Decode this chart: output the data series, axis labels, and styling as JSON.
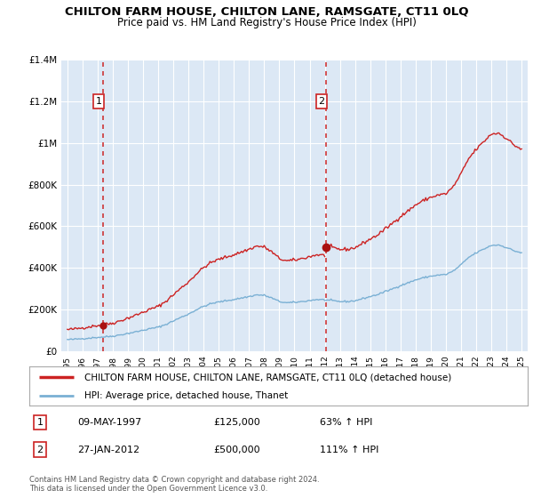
{
  "title": "CHILTON FARM HOUSE, CHILTON LANE, RAMSGATE, CT11 0LQ",
  "subtitle": "Price paid vs. HM Land Registry's House Price Index (HPI)",
  "legend_label_red": "CHILTON FARM HOUSE, CHILTON LANE, RAMSGATE, CT11 0LQ (detached house)",
  "legend_label_blue": "HPI: Average price, detached house, Thanet",
  "footer_line1": "Contains HM Land Registry data © Crown copyright and database right 2024.",
  "footer_line2": "This data is licensed under the Open Government Licence v3.0.",
  "table_rows": [
    {
      "num": "1",
      "date": "09-MAY-1997",
      "price": "£125,000",
      "hpi": "63% ↑ HPI"
    },
    {
      "num": "2",
      "date": "27-JAN-2012",
      "price": "£500,000",
      "hpi": "111% ↑ HPI"
    }
  ],
  "sale1_year": 1997.37,
  "sale1_price": 125000,
  "sale2_year": 2012.08,
  "sale2_price": 500000,
  "ylim": [
    0,
    1400000
  ],
  "xlim_min": 1994.6,
  "xlim_max": 2025.4,
  "yticks": [
    0,
    200000,
    400000,
    600000,
    800000,
    1000000,
    1200000,
    1400000
  ],
  "ytick_labels": [
    "£0",
    "£200K",
    "£400K",
    "£600K",
    "£800K",
    "£1M",
    "£1.2M",
    "£1.4M"
  ],
  "red_line_color": "#cc2222",
  "blue_line_color": "#7ab0d4",
  "plot_bg_color": "#dce8f5",
  "grid_color": "#ffffff",
  "vline_color": "#cc2222",
  "marker_color": "#aa1111"
}
